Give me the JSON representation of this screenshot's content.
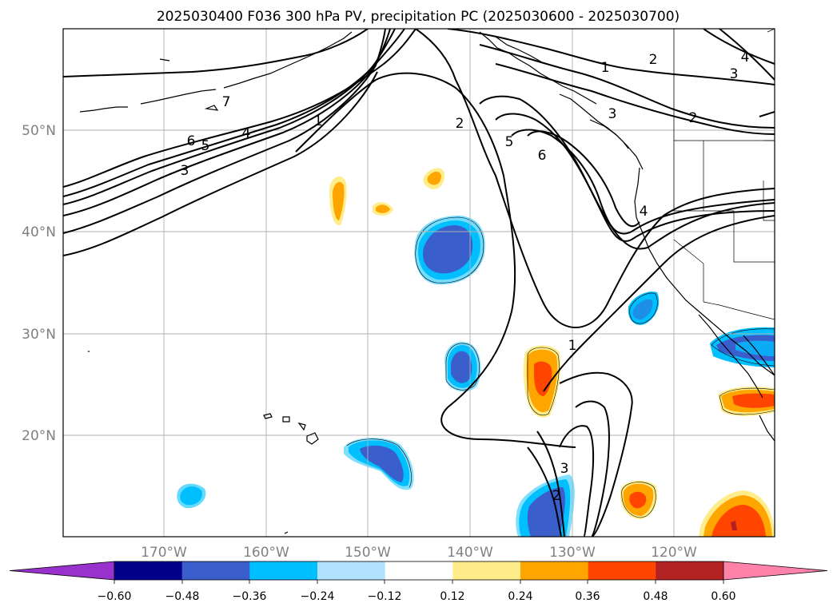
{
  "title": "2025030400 F036 300 hPa PV, precipitation PC (2025030600 - 2025030700)",
  "lat_labels": [
    "50°N",
    "40°N",
    "30°N",
    "20°N"
  ],
  "lon_labels": [
    "170°W",
    "160°W",
    "150°W",
    "140°W",
    "130°W",
    "120°W"
  ],
  "colorbar": {
    "labels": [
      "−0.60",
      "−0.48",
      "−0.36",
      "−0.24",
      "−0.12",
      "0.12",
      "0.24",
      "0.36",
      "0.48",
      "0.60"
    ],
    "colors": [
      "#9932cc",
      "#00008b",
      "#3a5fcd",
      "#00bfff",
      "#b0e2ff",
      "#ffffff",
      "#ffec8b",
      "#ffa500",
      "#ff4500",
      "#b22222",
      "#ff82ab"
    ]
  },
  "contour_labels": [
    "7",
    "6",
    "5",
    "4",
    "3",
    "1",
    "2",
    "5",
    "6",
    "1",
    "2",
    "3",
    "4",
    "2",
    "3",
    "4",
    "1",
    "3",
    "2"
  ],
  "colors": {
    "blue_strong": "#3a5fcd",
    "blue_mid": "#00bfff",
    "blue_light": "#b0e2ff",
    "orange_light": "#ffec8b",
    "orange_mid": "#ffa500",
    "orange_strong": "#ff4500"
  }
}
